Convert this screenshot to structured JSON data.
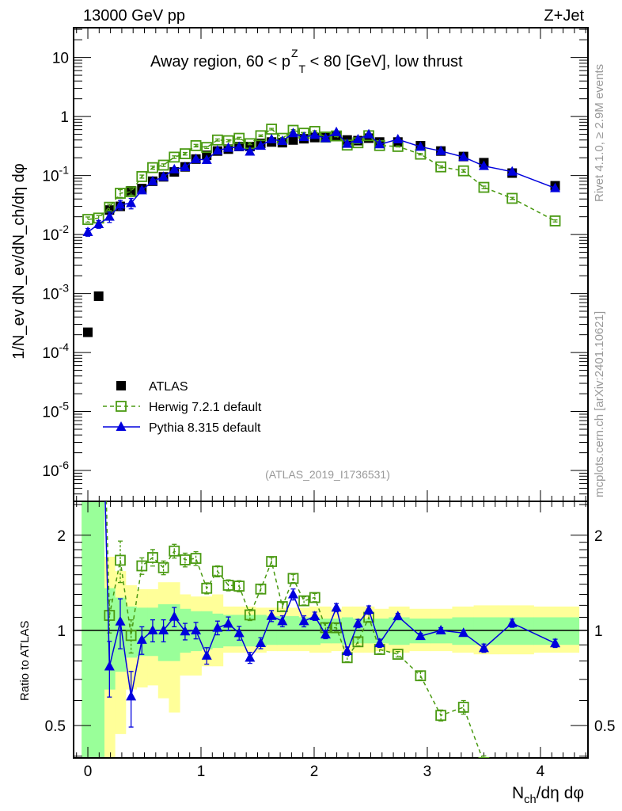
{
  "chart_data": {
    "type": "line",
    "title_left": "13000 GeV pp",
    "title_right": "Z+Jet",
    "annotation": {
      "pre": "Away region, 60 < p",
      "sup": "Z",
      "sub": "T",
      "post": " < 80 [GeV], low thrust"
    },
    "analysis_label": "(ATLAS_2019_I1736531)",
    "side_label_top": "Rivet 4.1.0, ≥ 2.9M events",
    "side_label_bottom": "mcplots.cern.ch [arXiv:2401.10621]",
    "ylabel": "1/N_ev dN_ev/dN_ch/dη dφ",
    "ylabel_parts": [
      [
        "1/N",
        ""
      ],
      [
        "ev",
        "sub"
      ],
      [
        " dN",
        ""
      ],
      [
        "ev",
        "sub"
      ],
      [
        "/dN",
        ""
      ],
      [
        "ch",
        "sub"
      ],
      [
        "/dη dφ",
        ""
      ]
    ],
    "xlabel_parts": [
      [
        "N",
        ""
      ],
      [
        "ch",
        "sub"
      ],
      [
        "/dη dφ",
        ""
      ]
    ],
    "ratio_ylabel": "Ratio to ATLAS",
    "xlim": [
      -0.126,
      4.42
    ],
    "ylim": [
      3e-07,
      32
    ],
    "yscale": "log",
    "ratio_ylim": [
      0.395,
      2.56
    ],
    "x_ticks": [
      0,
      1,
      2,
      3,
      4
    ],
    "y_ticks": [
      {
        "v": 1e-06,
        "base": "10",
        "exp": "-6"
      },
      {
        "v": 1e-05,
        "base": "10",
        "exp": "-5"
      },
      {
        "v": 0.0001,
        "base": "10",
        "exp": "-4"
      },
      {
        "v": 0.001,
        "base": "10",
        "exp": "-3"
      },
      {
        "v": 0.01,
        "base": "10",
        "exp": "-2"
      },
      {
        "v": 0.1,
        "base": "10",
        "exp": "-1"
      },
      {
        "v": 1,
        "base": "1",
        "exp": ""
      },
      {
        "v": 10,
        "base": "10",
        "exp": ""
      }
    ],
    "ratio_ticks": [
      {
        "v": 0.5,
        "label": "0.5"
      },
      {
        "v": 1,
        "label": "1"
      },
      {
        "v": 2,
        "label": "2"
      }
    ],
    "legend_position": "lower-left",
    "x": [
      0,
      0.0955,
      0.191,
      0.2865,
      0.382,
      0.4775,
      0.573,
      0.6685,
      0.764,
      0.8595,
      0.955,
      1.0505,
      1.146,
      1.2415,
      1.337,
      1.4325,
      1.528,
      1.6235,
      1.719,
      1.8145,
      1.91,
      2.0055,
      2.101,
      2.1965,
      2.292,
      2.3875,
      2.483,
      2.5785,
      2.74,
      2.94,
      3.12,
      3.32,
      3.5,
      3.75,
      4.13
    ],
    "series": [
      {
        "name": "ATLAS",
        "color": "#000000",
        "marker": "square-filled",
        "values": [
          0.00022,
          0.0009,
          0.026,
          0.03,
          0.055,
          0.06,
          0.08,
          0.095,
          0.115,
          0.14,
          0.19,
          0.22,
          0.26,
          0.28,
          0.31,
          0.31,
          0.35,
          0.37,
          0.36,
          0.4,
          0.42,
          0.44,
          0.44,
          0.46,
          0.4,
          0.39,
          0.43,
          0.37,
          0.37,
          0.32,
          0.26,
          0.21,
          0.165,
          0.11,
          0.067
        ]
      },
      {
        "name": "Herwig 7.2.1 default",
        "color": "#4a9a12",
        "marker": "square-open",
        "dashed": true,
        "values": [
          0.018,
          0.019,
          0.029,
          0.05,
          0.053,
          0.096,
          0.136,
          0.15,
          0.205,
          0.234,
          0.321,
          0.299,
          0.4,
          0.389,
          0.428,
          0.347,
          0.473,
          0.611,
          0.428,
          0.584,
          0.521,
          0.559,
          0.449,
          0.469,
          0.328,
          0.359,
          0.473,
          0.322,
          0.311,
          0.23,
          0.14,
          0.12,
          0.063,
          0.041,
          0.017
        ],
        "rel_err": [
          0.1,
          0.1,
          0.12,
          0.15,
          0.12,
          0.06,
          0.06,
          0.05,
          0.05,
          0.05,
          0.05,
          0.04,
          0.04,
          0.04,
          0.04,
          0.04,
          0.03,
          0.03,
          0.03,
          0.03,
          0.03,
          0.03,
          0.03,
          0.03,
          0.03,
          0.03,
          0.03,
          0.03,
          0.02,
          0.03,
          0.04,
          0.05,
          0.05,
          0.04,
          0.04
        ]
      },
      {
        "name": "Pythia 8.315 default",
        "color": "#0000dd",
        "marker": "triangle-filled",
        "values": [
          0.011,
          0.015,
          0.02,
          0.032,
          0.034,
          0.056,
          0.08,
          0.095,
          0.127,
          0.139,
          0.19,
          0.183,
          0.265,
          0.294,
          0.304,
          0.254,
          0.319,
          0.411,
          0.385,
          0.52,
          0.449,
          0.488,
          0.427,
          0.543,
          0.344,
          0.41,
          0.499,
          0.337,
          0.41,
          0.307,
          0.26,
          0.206,
          0.145,
          0.116,
          0.061
        ],
        "rel_err": [
          0.15,
          0.15,
          0.2,
          0.18,
          0.2,
          0.1,
          0.08,
          0.08,
          0.07,
          0.06,
          0.06,
          0.06,
          0.05,
          0.05,
          0.05,
          0.04,
          0.04,
          0.04,
          0.04,
          0.04,
          0.04,
          0.03,
          0.03,
          0.03,
          0.03,
          0.03,
          0.03,
          0.03,
          0.02,
          0.02,
          0.02,
          0.02,
          0.03,
          0.03,
          0.03
        ]
      }
    ],
    "band_inner": {
      "color": "#99ff99",
      "lo": [
        0.1,
        0.1,
        0.65,
        0.74,
        0.82,
        0.83,
        0.83,
        0.8,
        0.8,
        0.85,
        0.86,
        0.87,
        0.88,
        0.89,
        0.89,
        0.89,
        0.89,
        0.9,
        0.9,
        0.9,
        0.9,
        0.9,
        0.91,
        0.91,
        0.9,
        0.91,
        0.91,
        0.91,
        0.9,
        0.91,
        0.91,
        0.9,
        0.9,
        0.9,
        0.9
      ],
      "hi": [
        5,
        5,
        1.36,
        1.27,
        1.19,
        1.18,
        1.18,
        1.21,
        1.21,
        1.17,
        1.15,
        1.15,
        1.13,
        1.12,
        1.12,
        1.12,
        1.12,
        1.11,
        1.11,
        1.11,
        1.1,
        1.1,
        1.09,
        1.09,
        1.1,
        1.09,
        1.09,
        1.09,
        1.1,
        1.09,
        1.09,
        1.1,
        1.1,
        1.1,
        1.1
      ]
    },
    "band_outer": {
      "color": "#ffff99",
      "lo": [
        0.1,
        0.1,
        0.1,
        0.47,
        0.65,
        0.66,
        0.67,
        0.61,
        0.55,
        0.72,
        0.72,
        0.77,
        0.77,
        0.85,
        0.85,
        0.85,
        0.85,
        0.86,
        0.86,
        0.86,
        0.86,
        0.85,
        0.85,
        0.86,
        0.85,
        0.85,
        0.85,
        0.86,
        0.85,
        0.86,
        0.86,
        0.85,
        0.84,
        0.84,
        0.85
      ],
      "hi": [
        5,
        5,
        1.71,
        1.54,
        1.39,
        1.35,
        1.35,
        1.42,
        1.42,
        1.3,
        1.28,
        1.28,
        1.3,
        1.19,
        1.19,
        1.19,
        1.18,
        1.18,
        1.18,
        1.18,
        1.18,
        1.19,
        1.19,
        1.17,
        1.19,
        1.19,
        1.19,
        1.17,
        1.19,
        1.17,
        1.17,
        1.19,
        1.2,
        1.2,
        1.19
      ]
    }
  }
}
